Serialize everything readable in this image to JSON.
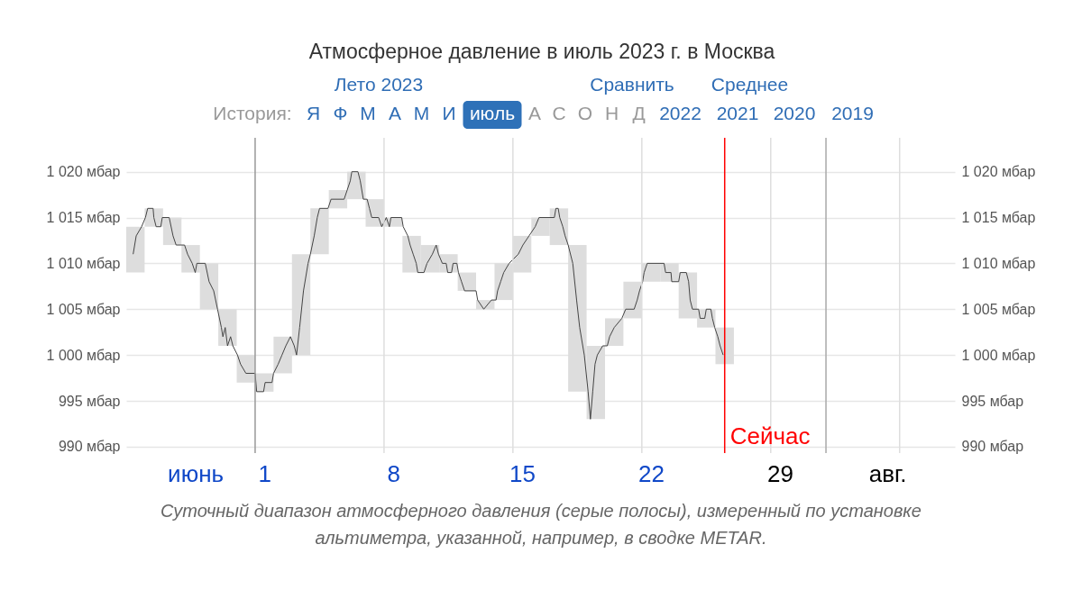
{
  "chart_data": {
    "type": "line",
    "title": "Атмосферное давление в июль 2023 г. в Москва",
    "xlim": [
      "2023-06-24",
      "2023-08-08"
    ],
    "xticks": [
      {
        "value": "2023-06-27T18:00",
        "label": "июнь"
      },
      {
        "value": "2023-07-01T12:00",
        "label": "1"
      },
      {
        "value": "2023-07-08T12:00",
        "label": "8"
      },
      {
        "value": "2023-07-15T12:00",
        "label": "15"
      },
      {
        "value": "2023-07-22T12:00",
        "label": "22"
      },
      {
        "value": "2023-07-29T12:00",
        "label": "29"
      },
      {
        "value": "2023-08-04T08:00",
        "label": "авг."
      }
    ],
    "ylim": [
      989.3,
      1023.7
    ],
    "yticks": [
      {
        "value": 990,
        "label": "990 мбар"
      },
      {
        "value": 995,
        "label": "995 мбар"
      },
      {
        "value": 1000,
        "label": "1 000 мбар"
      },
      {
        "value": 1005,
        "label": "1 005 мбар"
      },
      {
        "value": 1010,
        "label": "1 010 мбар"
      },
      {
        "value": 1015,
        "label": "1 015 мбар"
      },
      {
        "value": 1020,
        "label": "1 020 мбар"
      }
    ],
    "y2lim": [
      989.3,
      1023.7
    ],
    "y2ticks": [
      {
        "value": 990,
        "label": "990 мбар"
      },
      {
        "value": 995,
        "label": "995 мбар"
      },
      {
        "value": 1000,
        "label": "1 000 мбар"
      },
      {
        "value": 1005,
        "label": "1 005 мбар"
      },
      {
        "value": 1010,
        "label": "1 010 мбар"
      },
      {
        "value": 1015,
        "label": "1 015 мбар"
      },
      {
        "value": 1020,
        "label": "1 020 мбар"
      }
    ],
    "grid": "y",
    "line_style": "solid",
    "series": [
      {
        "type": "bar",
        "color": "#dddddd",
        "x": [
          "2023-06-24T12:00",
          "2023-06-25T12:00",
          "2023-06-26T12:00",
          "2023-06-27T12:00",
          "2023-06-28T12:00",
          "2023-06-29T12:00",
          "2023-06-30T12:00",
          "2023-07-01T12:00",
          "2023-07-02T12:00",
          "2023-07-03T12:00",
          "2023-07-04T12:00",
          "2023-07-05T12:00",
          "2023-07-06T12:00",
          "2023-07-07T12:00",
          "2023-07-08T12:00",
          "2023-07-09T12:00",
          "2023-07-10T12:00",
          "2023-07-11T12:00",
          "2023-07-12T12:00",
          "2023-07-13T12:00",
          "2023-07-14T12:00",
          "2023-07-15T12:00",
          "2023-07-16T12:00",
          "2023-07-17T12:00",
          "2023-07-18T12:00",
          "2023-07-19T12:00",
          "2023-07-20T12:00",
          "2023-07-21T12:00",
          "2023-07-22T12:00",
          "2023-07-23T12:00",
          "2023-07-24T12:00",
          "2023-07-25T12:00",
          "2023-07-26T12:00"
        ],
        "base": [
          1009,
          1014,
          1012,
          1009,
          1005,
          1001,
          997,
          996,
          998,
          1000,
          1011,
          1016,
          1017,
          1014,
          1014,
          1009,
          1009,
          1009,
          1007,
          1005,
          1006,
          1009,
          1013,
          1012,
          996,
          993,
          1001,
          1004,
          1008,
          1008,
          1004,
          1003,
          999
        ],
        "values": [
          5,
          2,
          3,
          3,
          5,
          4,
          3,
          2,
          4,
          11,
          5,
          2,
          3,
          3,
          1,
          4,
          3,
          2,
          2,
          1,
          4,
          4,
          2,
          4,
          16,
          8,
          3,
          4,
          2,
          2,
          5,
          2,
          4
        ]
      },
      {
        "color": "#444444",
        "x": [
          "2023-06-24T09:00",
          "2023-06-24T13:00",
          "2023-06-24T20:00",
          "2023-06-25T01:00",
          "2023-06-25T04:00",
          "2023-06-25T11:00",
          "2023-06-25T12:00",
          "2023-06-25T15:00",
          "2023-06-25T21:00",
          "2023-06-25T23:00",
          "2023-06-26T08:00",
          "2023-06-26T13:00",
          "2023-06-26T17:00",
          "2023-06-27T04:00",
          "2023-06-27T08:00",
          "2023-06-27T14:00",
          "2023-06-27T18:00",
          "2023-06-27T20:00",
          "2023-06-28T07:00",
          "2023-06-28T12:00",
          "2023-06-28T18:00",
          "2023-06-28T23:00",
          "2023-06-29T04:00",
          "2023-06-29T06:00",
          "2023-06-29T09:00",
          "2023-06-29T12:00",
          "2023-06-29T16:00",
          "2023-06-29T19:00",
          "2023-06-30T01:00",
          "2023-06-30T05:00",
          "2023-06-30T12:00",
          "2023-07-01T00:00",
          "2023-07-01T02:00",
          "2023-07-01T11:00",
          "2023-07-01T13:00",
          "2023-07-01T22:00",
          "2023-07-02T00:00",
          "2023-07-02T06:00",
          "2023-07-02T11:00",
          "2023-07-02T16:00",
          "2023-07-02T22:00",
          "2023-07-03T03:00",
          "2023-07-03T06:00",
          "2023-07-03T10:00",
          "2023-07-03T15:00",
          "2023-07-03T21:00",
          "2023-07-04T00:00",
          "2023-07-04T05:00",
          "2023-07-04T09:00",
          "2023-07-04T12:00",
          "2023-07-04T23:00",
          "2023-07-05T03:00",
          "2023-07-05T20:00",
          "2023-07-06T00:00",
          "2023-07-06T04:00",
          "2023-07-06T06:00",
          "2023-07-06T14:00",
          "2023-07-06T17:00",
          "2023-07-06T21:00",
          "2023-07-07T02:00",
          "2023-07-07T05:00",
          "2023-07-07T08:00",
          "2023-07-07T17:00",
          "2023-07-07T21:00",
          "2023-07-08T03:00",
          "2023-07-08T07:00",
          "2023-07-08T09:00",
          "2023-07-08T23:00",
          "2023-07-09T01:00",
          "2023-07-09T07:00",
          "2023-07-09T10:00",
          "2023-07-09T14:00",
          "2023-07-09T18:00",
          "2023-07-09T20:00",
          "2023-07-10T04:00",
          "2023-07-10T08:00",
          "2023-07-10T15:00",
          "2023-07-10T20:00",
          "2023-07-10T23:00",
          "2023-07-11T04:00",
          "2023-07-11T09:00",
          "2023-07-11T11:00",
          "2023-07-11T16:00",
          "2023-07-11T18:00",
          "2023-07-11T23:00",
          "2023-07-12T01:00",
          "2023-07-12T05:00",
          "2023-07-12T09:00",
          "2023-07-13T00:00",
          "2023-07-13T02:00",
          "2023-07-13T10:00",
          "2023-07-13T20:00",
          "2023-07-14T02:00",
          "2023-07-14T04:00",
          "2023-07-14T08:00",
          "2023-07-14T12:00",
          "2023-07-14T19:00",
          "2023-07-15T07:00",
          "2023-07-15T13:00",
          "2023-07-15T21:00",
          "2023-07-16T05:00",
          "2023-07-16T10:00",
          "2023-07-17T06:00",
          "2023-07-17T08:00",
          "2023-07-17T11:00",
          "2023-07-17T13:00",
          "2023-07-17T17:00",
          "2023-07-17T20:00",
          "2023-07-18T00:00",
          "2023-07-18T06:00",
          "2023-07-18T11:00",
          "2023-07-18T15:00",
          "2023-07-18T21:00",
          "2023-07-19T02:00",
          "2023-07-19T05:00",
          "2023-07-19T08:00",
          "2023-07-19T11:00",
          "2023-07-19T14:00",
          "2023-07-19T21:00",
          "2023-07-20T03:00",
          "2023-07-20T06:00",
          "2023-07-20T12:00",
          "2023-07-20T22:00",
          "2023-07-21T03:00",
          "2023-07-21T14:00",
          "2023-07-21T18:00",
          "2023-07-21T21:00",
          "2023-07-22T01:00",
          "2023-07-22T03:00",
          "2023-07-22T07:00",
          "2023-07-23T05:00",
          "2023-07-23T07:00",
          "2023-07-23T14:00",
          "2023-07-23T15:00",
          "2023-07-24T00:00",
          "2023-07-24T02:00",
          "2023-07-24T10:00",
          "2023-07-24T13:00",
          "2023-07-24T15:00",
          "2023-07-24T18:00",
          "2023-07-25T02:00",
          "2023-07-25T04:00",
          "2023-07-25T10:00",
          "2023-07-25T12:00",
          "2023-07-25T18:00",
          "2023-07-25T20:00",
          "2023-07-25T23:00",
          "2023-07-26T03:00",
          "2023-07-26T06:00",
          "2023-07-26T10:00"
        ],
        "values": [
          1011,
          1013,
          1014,
          1015,
          1016,
          1016,
          1015,
          1014,
          1014,
          1015,
          1015,
          1013,
          1012,
          1012,
          1011,
          1010,
          1009,
          1010,
          1010,
          1008,
          1007,
          1005,
          1003,
          1002,
          1003,
          1001,
          1002,
          1001,
          1000,
          999,
          998,
          998,
          996,
          996,
          997,
          997,
          998,
          999,
          1000,
          1001,
          1002,
          1001,
          1000,
          1003,
          1007,
          1010,
          1011,
          1013,
          1015,
          1016,
          1016,
          1017,
          1017,
          1018,
          1019,
          1020,
          1020,
          1019,
          1017,
          1017,
          1016,
          1015,
          1015,
          1014,
          1015,
          1014,
          1015,
          1015,
          1014,
          1013,
          1012,
          1011,
          1010,
          1009,
          1009,
          1010,
          1011,
          1012,
          1011,
          1010,
          1010,
          1009,
          1009,
          1010,
          1010,
          1009,
          1008,
          1007,
          1007,
          1006,
          1005,
          1006,
          1006,
          1007,
          1008,
          1009,
          1010,
          1011,
          1012,
          1013,
          1014,
          1015,
          1015,
          1016,
          1016,
          1015,
          1014,
          1013,
          1012,
          1010,
          1006,
          1003,
          1000,
          996,
          993,
          996,
          999,
          1000,
          1001,
          1001,
          1002,
          1003,
          1004,
          1005,
          1005,
          1006,
          1007,
          1008,
          1009,
          1010,
          1010,
          1009,
          1009,
          1008,
          1008,
          1009,
          1009,
          1008,
          1006,
          1005,
          1005,
          1004,
          1004,
          1005,
          1005,
          1004,
          1003,
          1002,
          1001,
          1000
        ]
      }
    ],
    "ref_lines": [
      {
        "axis": "x",
        "value": "2023-07-01",
        "color": "#999999"
      },
      {
        "axis": "x",
        "value": "2023-07-08",
        "color": "#dedede"
      },
      {
        "axis": "x",
        "value": "2023-07-15",
        "color": "#dedede"
      },
      {
        "axis": "x",
        "value": "2023-07-22",
        "color": "#dedede"
      },
      {
        "axis": "x",
        "value": "2023-07-29",
        "color": "#dedede"
      },
      {
        "axis": "x",
        "value": "2023-08-01",
        "color": "#aaaaaa"
      },
      {
        "axis": "x",
        "value": "2023-08-05",
        "color": "#dedede"
      },
      {
        "axis": "x",
        "value": "2023-07-26T12:00",
        "label": "Сейчас",
        "color": "#ff0000"
      }
    ],
    "annotations": [
      "Лето 2023",
      "Сравнить",
      "Среднее",
      "История:",
      "Я",
      "Ф",
      "М",
      "А",
      "М",
      "И",
      "июль",
      "А",
      "С",
      "О",
      "Н",
      "Д",
      "2022",
      "2021",
      "2020",
      "2019",
      "Суточный диапазон атмосферного давления (серые полосы), измеренный по установке альтиметра, указанной, например, в сводке METAR."
    ]
  }
}
